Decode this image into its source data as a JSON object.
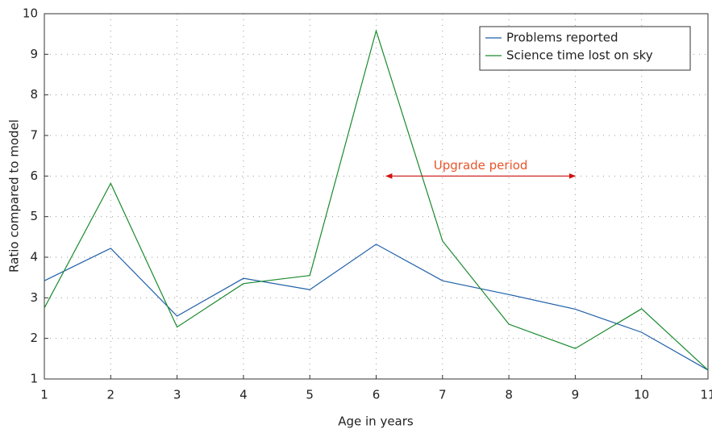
{
  "chart_data": {
    "type": "line",
    "xlabel": "Age in years",
    "ylabel": "Ratio compared to model",
    "x": [
      1,
      2,
      3,
      4,
      5,
      6,
      7,
      8,
      9,
      10,
      11
    ],
    "series": [
      {
        "name": "Problems reported",
        "color": "#1f5fa8",
        "values": [
          3.42,
          4.22,
          2.55,
          3.48,
          3.2,
          4.32,
          3.42,
          3.08,
          2.72,
          2.15,
          1.22
        ]
      },
      {
        "name": "Science time lost on sky",
        "color": "#1a8a2e",
        "values": [
          2.75,
          5.82,
          2.28,
          3.35,
          3.55,
          9.58,
          4.4,
          2.35,
          1.75,
          2.73,
          1.22
        ]
      }
    ],
    "xlim": [
      1,
      11
    ],
    "ylim": [
      1,
      10
    ],
    "xticks": [
      1,
      2,
      3,
      4,
      5,
      6,
      7,
      8,
      9,
      10,
      11
    ],
    "yticks": [
      1,
      2,
      3,
      4,
      5,
      6,
      7,
      8,
      9,
      10
    ],
    "grid": true,
    "legend": "upper right",
    "annotation": {
      "text": "Upgrade period",
      "x": [
        6.15,
        9
      ],
      "y": 6,
      "color": "#e8552b"
    }
  }
}
